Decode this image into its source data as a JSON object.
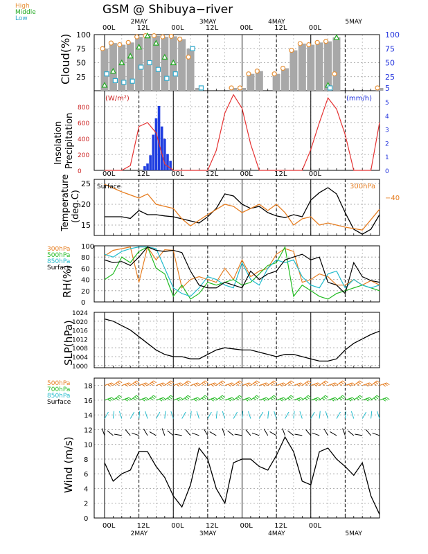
{
  "title": "GSM @ Shibuya−river",
  "time_axis": {
    "tick_labels": [
      "00L",
      "12L",
      "00L",
      "12L",
      "00L",
      "12L",
      "00L"
    ],
    "date_labels": [
      "2MAY",
      "3MAY",
      "4MAY",
      "5MAY"
    ]
  },
  "panels": {
    "cloud": {
      "ylabel": "Cloud(%)",
      "legend": [
        "High",
        "Middle",
        "Low"
      ],
      "yticks": [
        "100",
        "75",
        "50",
        "25"
      ],
      "yticks_right": [
        "100",
        "75",
        "50",
        "25",
        "5"
      ]
    },
    "insolation": {
      "ylabel1": "Insolation",
      "ylabel2": "Precipitation",
      "unit_left": "(W/m²)",
      "unit_right": "(mm/h)",
      "yticks": [
        "800",
        "600",
        "400",
        "200",
        "0"
      ],
      "yticks_right": [
        "5",
        "4",
        "3",
        "2",
        "1",
        "0"
      ]
    },
    "temperature": {
      "ylabel1": "Temperature",
      "ylabel2": "(deg.C)",
      "legend_left": "Surface",
      "legend_right": "300hPa",
      "right_tick": "−40",
      "yticks": [
        "25",
        "20",
        "15"
      ]
    },
    "rh": {
      "ylabel": "RH(%)",
      "legend": [
        "300hPa",
        "500hPa",
        "850hPa",
        "Surface"
      ],
      "yticks": [
        "100",
        "80",
        "60",
        "40",
        "20",
        "0"
      ]
    },
    "slp": {
      "ylabel": "SLP(hPa)",
      "yticks": [
        "1024",
        "1020",
        "1016",
        "1012",
        "1008",
        "1004",
        "1000"
      ]
    },
    "wind": {
      "ylabel": "Wind  (m/s)",
      "legend": [
        "500hPa",
        "700hPa",
        "850hPa",
        "Surface"
      ],
      "yticks": [
        "18",
        "16",
        "14",
        "12",
        "10",
        "8",
        "6",
        "4",
        "2",
        "0"
      ]
    }
  },
  "chart_data": [
    {
      "type": "bar",
      "title": "Cloud(%)",
      "ylim": [
        0,
        100
      ],
      "x": [
        0,
        3,
        6,
        9,
        12,
        15,
        18,
        21,
        24,
        27,
        30,
        33,
        36,
        39,
        42,
        45,
        48,
        51,
        54,
        57,
        60,
        63,
        66,
        69,
        72,
        75,
        78,
        81,
        84,
        87,
        90,
        93,
        96
      ],
      "series": [
        {
          "name": "High",
          "values": [
            75,
            85,
            82,
            86,
            96,
            98,
            98,
            96,
            97,
            92,
            60,
            0,
            0,
            0,
            0,
            5,
            5,
            30,
            35,
            0,
            30,
            40,
            72,
            84,
            82,
            86,
            88,
            30,
            0,
            0,
            0,
            0,
            5
          ]
        },
        {
          "name": "Middle",
          "values": [
            10,
            35,
            50,
            62,
            78,
            98,
            85,
            60,
            50,
            0,
            0,
            0,
            0,
            0,
            0,
            0,
            0,
            0,
            0,
            0,
            0,
            0,
            0,
            0,
            0,
            0,
            10,
            95,
            0,
            0,
            0,
            0,
            0
          ]
        },
        {
          "name": "Low",
          "values": [
            30,
            18,
            15,
            17,
            42,
            50,
            38,
            22,
            30,
            0,
            75,
            5,
            0,
            0,
            0,
            0,
            0,
            0,
            0,
            0,
            0,
            0,
            0,
            0,
            0,
            0,
            5,
            0,
            0,
            0,
            0,
            0,
            0
          ]
        }
      ]
    },
    {
      "type": "line",
      "title": "Insolation / Precipitation",
      "ylim": [
        0,
        1000
      ],
      "series": [
        {
          "name": "Insolation (W/m²)",
          "x": [
            0,
            3,
            6,
            9,
            12,
            15,
            18,
            21,
            24,
            27,
            30,
            33,
            36,
            39,
            42,
            45,
            48,
            51,
            54,
            57,
            60,
            63,
            66,
            69,
            72,
            75,
            78,
            81,
            84,
            87,
            90,
            93,
            96
          ],
          "values": [
            0,
            0,
            0,
            60,
            550,
            600,
            470,
            80,
            0,
            0,
            0,
            0,
            0,
            250,
            720,
            950,
            780,
            330,
            0,
            0,
            0,
            0,
            0,
            0,
            260,
            600,
            910,
            770,
            450,
            0,
            0,
            0,
            600
          ]
        },
        {
          "name": "Precipitation (mm/h)",
          "x": [
            14,
            15,
            16,
            17,
            18,
            19,
            20,
            21,
            22,
            23
          ],
          "values": [
            0.3,
            0.5,
            1.1,
            2.6,
            3.8,
            4.7,
            3.2,
            2.3,
            1.2,
            0.7
          ]
        }
      ]
    },
    {
      "type": "line",
      "title": "Temperature",
      "ylim": [
        12.5,
        26
      ],
      "series": [
        {
          "name": "Surface",
          "x": [
            0,
            3,
            6,
            9,
            12,
            15,
            18,
            21,
            24,
            27,
            30,
            33,
            36,
            39,
            42,
            45,
            48,
            51,
            54,
            57,
            60,
            63,
            66,
            69,
            72,
            75,
            78,
            81,
            84,
            87,
            90,
            93,
            96
          ],
          "values": [
            17,
            17,
            17,
            16.6,
            18.5,
            17.5,
            17.5,
            17.2,
            17,
            16.5,
            16,
            15.5,
            17,
            19,
            22.5,
            22,
            20,
            19,
            19.5,
            18,
            17.2,
            16.8,
            17.5,
            17,
            21,
            22.8,
            24,
            22.5,
            18,
            14,
            12.8,
            14,
            17.5
          ]
        },
        {
          "name": "300hPa",
          "x": [
            0,
            6,
            12,
            15,
            18,
            24,
            27,
            30,
            36,
            42,
            45,
            48,
            54,
            57,
            60,
            63,
            66,
            69,
            72,
            75,
            78,
            84,
            90,
            96
          ],
          "values": [
            24.8,
            23,
            21.5,
            22.5,
            20,
            19,
            16.5,
            14.8,
            17.5,
            20,
            19.5,
            18,
            20,
            18.5,
            20,
            18,
            15,
            16.5,
            17,
            15,
            15.5,
            14.5,
            13.8,
            18.8
          ]
        }
      ]
    },
    {
      "type": "line",
      "title": "RH(%)",
      "ylim": [
        0,
        100
      ],
      "series": [
        {
          "name": "300hPa",
          "x": [
            0,
            3,
            9,
            12,
            15,
            18,
            21,
            24,
            27,
            30,
            33,
            36,
            39,
            42,
            45,
            48,
            51,
            54,
            57,
            60,
            63,
            66,
            69,
            72,
            75,
            78,
            81,
            84,
            87,
            90,
            93,
            96
          ],
          "values": [
            82,
            92,
            98,
            35,
            98,
            75,
            93,
            92,
            25,
            40,
            45,
            40,
            35,
            60,
            40,
            75,
            45,
            55,
            60,
            85,
            95,
            90,
            35,
            40,
            50,
            45,
            30,
            30,
            40,
            30,
            38,
            30
          ]
        },
        {
          "name": "500hPa",
          "x": [
            0,
            3,
            6,
            9,
            12,
            15,
            18,
            21,
            24,
            27,
            30,
            33,
            36,
            39,
            42,
            45,
            48,
            51,
            54,
            57,
            60,
            63,
            66,
            69,
            72,
            75,
            78,
            81,
            84,
            87,
            90,
            93,
            96
          ],
          "values": [
            40,
            50,
            80,
            70,
            90,
            98,
            60,
            50,
            10,
            30,
            5,
            15,
            35,
            30,
            35,
            40,
            30,
            35,
            50,
            65,
            70,
            98,
            10,
            30,
            20,
            10,
            5,
            15,
            20,
            25,
            30,
            25,
            20
          ]
        },
        {
          "name": "850hPa",
          "x": [
            0,
            3,
            6,
            9,
            12,
            15,
            18,
            21,
            24,
            27,
            30,
            33,
            36,
            39,
            42,
            45,
            48,
            51,
            54,
            57,
            60,
            63,
            66,
            69,
            72,
            75,
            78,
            81,
            84,
            87,
            90,
            93,
            96
          ],
          "values": [
            85,
            80,
            90,
            95,
            98,
            98,
            95,
            60,
            25,
            15,
            10,
            25,
            45,
            40,
            30,
            25,
            70,
            40,
            30,
            60,
            75,
            70,
            75,
            45,
            30,
            25,
            50,
            55,
            25,
            40,
            30,
            25,
            30
          ]
        },
        {
          "name": "Surface",
          "x": [
            0,
            3,
            6,
            9,
            12,
            15,
            18,
            21,
            24,
            27,
            30,
            33,
            36,
            39,
            42,
            45,
            48,
            51,
            54,
            57,
            60,
            63,
            66,
            69,
            72,
            75,
            78,
            81,
            84,
            87,
            90,
            93,
            96
          ],
          "values": [
            75,
            70,
            72,
            65,
            80,
            98,
            92,
            90,
            92,
            88,
            55,
            30,
            25,
            25,
            35,
            30,
            25,
            55,
            40,
            50,
            55,
            75,
            80,
            85,
            75,
            80,
            35,
            30,
            15,
            70,
            45,
            38,
            35
          ]
        }
      ]
    },
    {
      "type": "line",
      "title": "SLP(hPa)",
      "ylim": [
        999,
        1024
      ],
      "series": [
        {
          "name": "Surface",
          "x": [
            0,
            3,
            6,
            9,
            12,
            15,
            18,
            21,
            24,
            27,
            30,
            33,
            36,
            39,
            42,
            45,
            48,
            51,
            54,
            57,
            60,
            63,
            66,
            69,
            72,
            75,
            78,
            81,
            84,
            87,
            90,
            93,
            96
          ],
          "values": [
            1021,
            1020,
            1018,
            1016,
            1013,
            1010,
            1007,
            1005,
            1004,
            1004,
            1003,
            1003,
            1005,
            1007,
            1008,
            1007.5,
            1007,
            1007,
            1006,
            1005,
            1004,
            1005,
            1005,
            1004,
            1003,
            1002,
            1002,
            1003,
            1007,
            1010,
            1012,
            1014,
            1015.5
          ]
        }
      ]
    },
    {
      "type": "line",
      "title": "Wind (m/s)",
      "ylim": [
        0,
        19
      ],
      "series": [
        {
          "name": "Surface",
          "x": [
            0,
            3,
            6,
            9,
            12,
            15,
            18,
            21,
            24,
            27,
            30,
            33,
            36,
            39,
            42,
            45,
            48,
            51,
            54,
            57,
            60,
            63,
            66,
            69,
            72,
            75,
            78,
            81,
            84,
            87,
            90,
            93,
            96
          ],
          "values": [
            7.5,
            5,
            6,
            6.5,
            9,
            9,
            7,
            5.5,
            3,
            1.5,
            4.5,
            9.5,
            8,
            4,
            2,
            7.5,
            8,
            8,
            7,
            6.5,
            8.5,
            11,
            9,
            5,
            4.5,
            9,
            9.5,
            8,
            7,
            5.8,
            7.5,
            3,
            0.5
          ]
        }
      ]
    }
  ]
}
